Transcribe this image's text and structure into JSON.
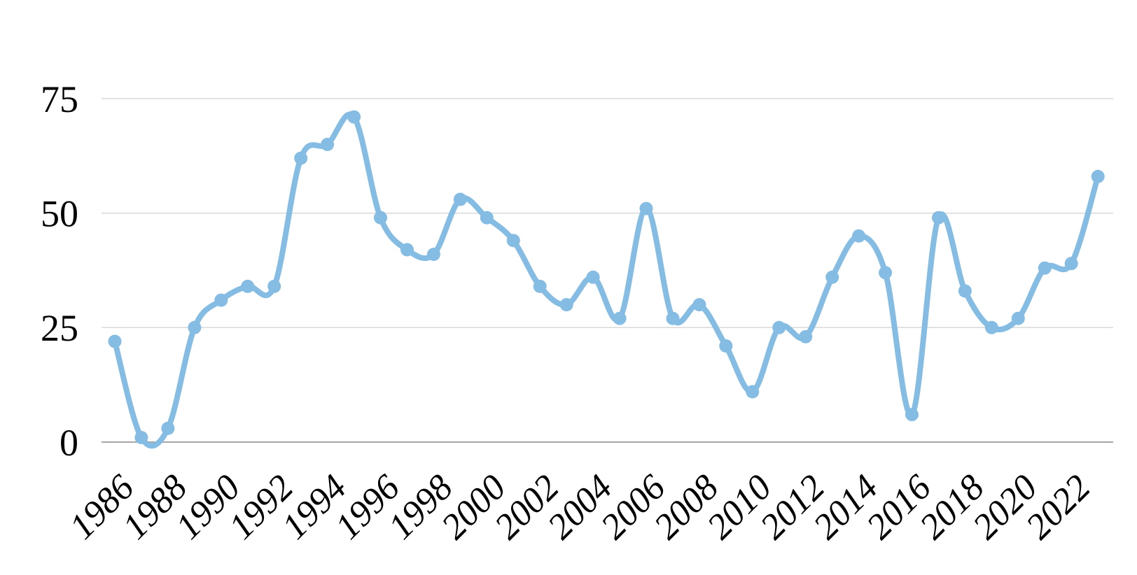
{
  "chart_data": {
    "type": "line",
    "title": "",
    "xlabel": "",
    "ylabel": "",
    "x": [
      1986,
      1987,
      1988,
      1989,
      1990,
      1991,
      1992,
      1993,
      1994,
      1995,
      1996,
      1997,
      1998,
      1999,
      2000,
      2001,
      2002,
      2003,
      2004,
      2005,
      2006,
      2007,
      2008,
      2009,
      2010,
      2011,
      2012,
      2013,
      2014,
      2015,
      2016,
      2017,
      2018,
      2019,
      2020,
      2021,
      2022,
      2023
    ],
    "values": [
      22,
      1,
      3,
      25,
      31,
      34,
      34,
      62,
      65,
      71,
      49,
      42,
      41,
      53,
      49,
      44,
      34,
      30,
      36,
      27,
      51,
      27,
      30,
      21,
      11,
      25,
      23,
      36,
      45,
      37,
      6,
      49,
      33,
      25,
      27,
      38,
      39,
      58
    ],
    "y_ticks": [
      0,
      25,
      50,
      75
    ],
    "x_tick_labels": [
      "1986",
      "1988",
      "1990",
      "1992",
      "1994",
      "1996",
      "1998",
      "2000",
      "2002",
      "2004",
      "2006",
      "2008",
      "2010",
      "2012",
      "2014",
      "2016",
      "2018",
      "2020",
      "2022"
    ],
    "ylim": [
      0,
      75
    ],
    "grid": "horizontal",
    "legend": "none",
    "smooth": true,
    "marker": "circle",
    "line_color": "#84BCE4",
    "gridline_color": "#D9D9D9",
    "zero_line_color": "#A6A6A6",
    "label_color": "#000000"
  }
}
